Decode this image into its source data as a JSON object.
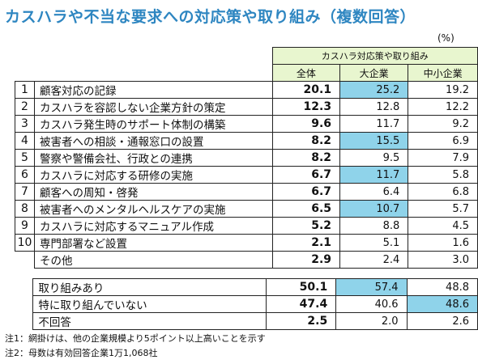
{
  "title": "カスハラや不当な要求への対応策や取り組み（複数回答）",
  "unit": "(%)",
  "header": {
    "group": "カスハラ対応策や取り組み",
    "col_all": "全体",
    "col_large": "大企業",
    "col_sme": "中小企業"
  },
  "rows": [
    {
      "no": "1",
      "label": "顧客対応の記録",
      "all": "20.1",
      "large": "25.2",
      "sme": "19.2"
    },
    {
      "no": "2",
      "label": "カスハラを容認しない企業方針の策定",
      "all": "12.3",
      "large": "12.8",
      "sme": "12.2"
    },
    {
      "no": "3",
      "label": "カスハラ発生時のサポート体制の構築",
      "all": "9.6",
      "large": "11.7",
      "sme": "9.2"
    },
    {
      "no": "4",
      "label": "被害者への相談・通報窓口の設置",
      "all": "8.2",
      "large": "15.5",
      "sme": "6.9"
    },
    {
      "no": "5",
      "label": "警察や警備会社、行政との連携",
      "all": "8.2",
      "large": "9.5",
      "sme": "7.9"
    },
    {
      "no": "6",
      "label": "カスハラに対応する研修の実施",
      "all": "6.7",
      "large": "11.7",
      "sme": "5.8"
    },
    {
      "no": "7",
      "label": "顧客への周知・啓発",
      "all": "6.7",
      "large": "6.4",
      "sme": "6.8"
    },
    {
      "no": "8",
      "label": "被害者へのメンタルヘルスケアの実施",
      "all": "6.5",
      "large": "10.7",
      "sme": "5.7"
    },
    {
      "no": "9",
      "label": "カスハラに対応するマニュアル作成",
      "all": "5.2",
      "large": "8.8",
      "sme": "4.5"
    },
    {
      "no": "10",
      "label": "専門部署など設置",
      "all": "2.1",
      "large": "5.1",
      "sme": "1.6"
    },
    {
      "no": "",
      "label": "その他",
      "all": "2.9",
      "large": "2.4",
      "sme": "3.0"
    }
  ],
  "summary": [
    {
      "label": "取り組みあり",
      "all": "50.1",
      "large": "57.4",
      "sme": "48.8"
    },
    {
      "label": "特に取り組んでいない",
      "all": "47.4",
      "large": "40.6",
      "sme": "48.6"
    },
    {
      "label": "不回答",
      "all": "2.5",
      "large": "2.0",
      "sme": "2.6"
    }
  ],
  "highlight_color": "#8fd3ea",
  "highlight_note": "large column highlighted in rows 1,4,6,8 and 取り組みあり; sme column highlighted in 特に取り組んでいない",
  "notes": [
    "注1：網掛けは、他の企業規模より5ポイント以上高いことを示す",
    "注2：母数は有効回答企業1万1,068社"
  ]
}
